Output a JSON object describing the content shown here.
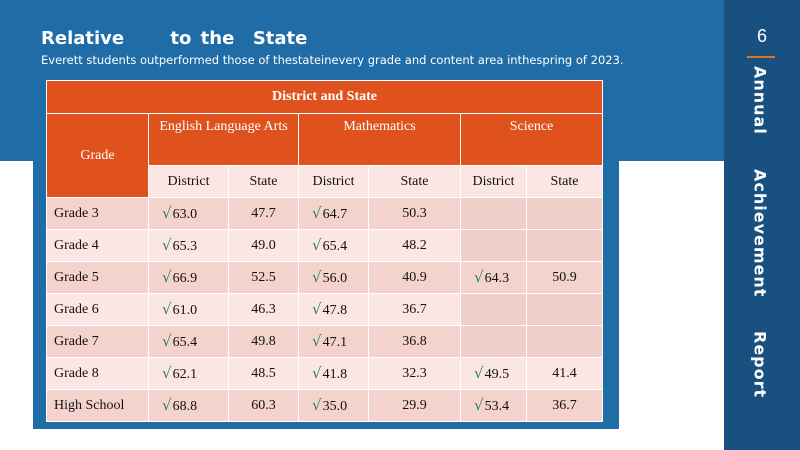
{
  "page_number": "6",
  "side_title": [
    "Annual",
    "Achievement",
    "Report"
  ],
  "title": "Relative     to the  State",
  "subtitle": "Everett students outperformed  those of thestateinevery grade  and content area inthespring of 2023.",
  "table": {
    "main_header": "District and State",
    "grade_header": "Grade",
    "groups": [
      "English Language Arts",
      "Mathematics",
      "Science"
    ],
    "sub_headers": [
      "District",
      "State",
      "District",
      "State",
      "District",
      "State"
    ],
    "check_symbol": "√",
    "rows": [
      {
        "grade": "Grade 3",
        "ela_d": "63.0",
        "ela_s": "47.7",
        "math_d": "64.7",
        "math_s": "50.3",
        "sci_d": "",
        "sci_s": ""
      },
      {
        "grade": "Grade 4",
        "ela_d": "65.3",
        "ela_s": "49.0",
        "math_d": "65.4",
        "math_s": "48.2",
        "sci_d": "",
        "sci_s": ""
      },
      {
        "grade": "Grade 5",
        "ela_d": "66.9",
        "ela_s": "52.5",
        "math_d": "56.0",
        "math_s": "40.9",
        "sci_d": "64.3",
        "sci_s": "50.9"
      },
      {
        "grade": "Grade 6",
        "ela_d": "61.0",
        "ela_s": "46.3",
        "math_d": "47.8",
        "math_s": "36.7",
        "sci_d": "",
        "sci_s": ""
      },
      {
        "grade": "Grade 7",
        "ela_d": "65.4",
        "ela_s": "49.8",
        "math_d": "47.1",
        "math_s": "36.8",
        "sci_d": "",
        "sci_s": ""
      },
      {
        "grade": "Grade 8",
        "ela_d": "62.1",
        "ela_s": "48.5",
        "math_d": "41.8",
        "math_s": "32.3",
        "sci_d": "49.5",
        "sci_s": "41.4"
      },
      {
        "grade": "High School",
        "ela_d": "68.8",
        "ela_s": "60.3",
        "math_d": "35.0",
        "math_s": "29.9",
        "sci_d": "53.4",
        "sci_s": "36.7"
      }
    ]
  },
  "colors": {
    "header_orange": "#e0521d",
    "panel_blue": "#1f6ca6",
    "side_navy": "#18507f",
    "check_green": "#2f8a3a"
  }
}
